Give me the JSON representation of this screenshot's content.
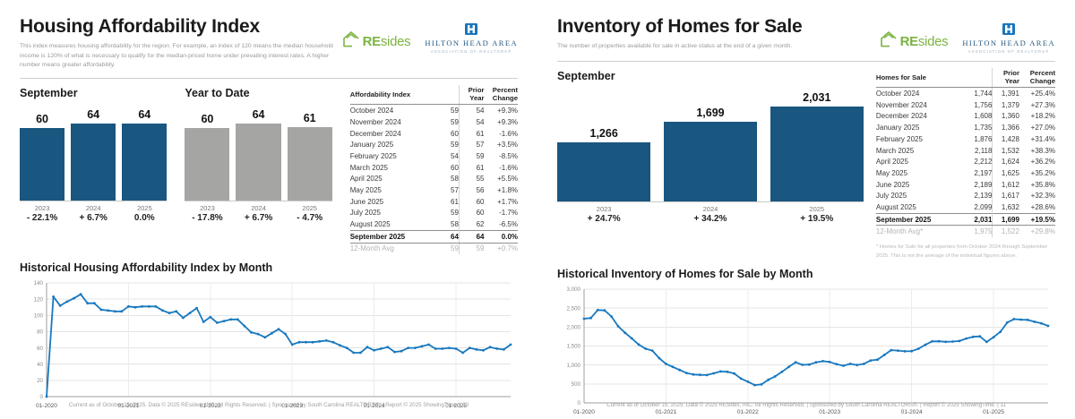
{
  "logos": {
    "resides_re": "RE",
    "resides_sides": "sides",
    "hha_name": "HILTON HEAD AREA",
    "hha_sub": "ASSOCIATION OF REALTORS®"
  },
  "colors": {
    "bar_blue": "#195680",
    "bar_gray": "#a5a5a4",
    "line_blue": "#1878bf"
  },
  "panels": [
    {
      "title": "Housing Affordability Index",
      "description": "This index measures housing affordability for the region. For example, an index of 120 means the median household income is 120% of what is necessary to qualify for the median-priced home under prevailing interest rates. A higher number means greater affordability.",
      "table": {
        "title": "Affordability Index",
        "col_headers": [
          "Prior Year",
          "Percent Change"
        ],
        "rows": [
          [
            "October 2024",
            "59",
            "54",
            "+9.3%"
          ],
          [
            "November 2024",
            "59",
            "54",
            "+9.3%"
          ],
          [
            "December 2024",
            "60",
            "61",
            "-1.6%"
          ],
          [
            "January 2025",
            "59",
            "57",
            "+3.5%"
          ],
          [
            "February 2025",
            "54",
            "59",
            "-8.5%"
          ],
          [
            "March 2025",
            "60",
            "61",
            "-1.6%"
          ],
          [
            "April 2025",
            "58",
            "55",
            "+5.5%"
          ],
          [
            "May 2025",
            "57",
            "56",
            "+1.8%"
          ],
          [
            "June 2025",
            "61",
            "60",
            "+1.7%"
          ],
          [
            "July 2025",
            "59",
            "60",
            "-1.7%"
          ],
          [
            "August 2025",
            "58",
            "62",
            "-6.5%"
          ],
          [
            "September 2025",
            "64",
            "64",
            "0.0%"
          ]
        ],
        "avg_row": [
          "12-Month Avg",
          "59",
          "59",
          "+0.7%"
        ],
        "footnote": ""
      },
      "footer": "Current as of October 15, 2025. Data © 2025 REsides, INC. All Rights Reserved.  |  Sponsored by South Carolina REALTORS®.  |  Report © 2025 ShowingTime.  |  10"
    },
    {
      "title": "Inventory of Homes for Sale",
      "description": "The number of properties available for sale in active status at the end of a given month.",
      "table": {
        "title": "Homes for Sale",
        "col_headers": [
          "Prior Year",
          "Percent Change"
        ],
        "rows": [
          [
            "October 2024",
            "1,744",
            "1,391",
            "+25.4%"
          ],
          [
            "November 2024",
            "1,756",
            "1,379",
            "+27.3%"
          ],
          [
            "December 2024",
            "1,608",
            "1,360",
            "+18.2%"
          ],
          [
            "January 2025",
            "1,735",
            "1,366",
            "+27.0%"
          ],
          [
            "February 2025",
            "1,876",
            "1,428",
            "+31.4%"
          ],
          [
            "March 2025",
            "2,118",
            "1,532",
            "+38.3%"
          ],
          [
            "April 2025",
            "2,212",
            "1,624",
            "+36.2%"
          ],
          [
            "May 2025",
            "2,197",
            "1,625",
            "+35.2%"
          ],
          [
            "June 2025",
            "2,189",
            "1,612",
            "+35.8%"
          ],
          [
            "July 2025",
            "2,139",
            "1,617",
            "+32.3%"
          ],
          [
            "August 2025",
            "2,099",
            "1,632",
            "+28.6%"
          ],
          [
            "September 2025",
            "2,031",
            "1,699",
            "+19.5%"
          ]
        ],
        "avg_row": [
          "12-Month Avg*",
          "1,975",
          "1,522",
          "+29.8%"
        ],
        "footnote": "* Homes for Sale for all properties from October 2024 through September 2025. This is not the average of the individual figures above."
      },
      "footer": "Current as of October 15, 2025. Data © 2025 REsides, INC. All Rights Reserved.  |  Sponsored by South Carolina REALTORS®.  |  Report © 2025 ShowingTime.  |  11"
    }
  ],
  "chart_data": [
    {
      "id": "affordability-september",
      "type": "bar",
      "title": "September",
      "categories": [
        "2023",
        "2024",
        "2025"
      ],
      "values": [
        60,
        64,
        64
      ],
      "value_labels": [
        "60",
        "64",
        "64"
      ],
      "pct_change": [
        "- 22.1%",
        "+ 6.7%",
        "0.0%"
      ],
      "bar_color": "#195680",
      "ylim": [
        0,
        64
      ]
    },
    {
      "id": "affordability-ytd",
      "type": "bar",
      "title": "Year to Date",
      "categories": [
        "2023",
        "2024",
        "2025"
      ],
      "values": [
        60,
        64,
        61
      ],
      "value_labels": [
        "60",
        "64",
        "61"
      ],
      "pct_change": [
        "- 17.8%",
        "+ 6.7%",
        "- 4.7%"
      ],
      "bar_color": "#a5a5a4",
      "ylim": [
        0,
        64
      ]
    },
    {
      "id": "inventory-september",
      "type": "bar",
      "title": "September",
      "categories": [
        "2023",
        "2024",
        "2025"
      ],
      "values": [
        1266,
        1699,
        2031
      ],
      "value_labels": [
        "1,266",
        "1,699",
        "2,031"
      ],
      "pct_change": [
        "+ 24.7%",
        "+ 34.2%",
        "+ 19.5%"
      ],
      "bar_color": "#195680",
      "ylim": [
        0,
        2031
      ]
    },
    {
      "id": "affordability-history",
      "type": "line",
      "title": "Historical Housing Affordability Index by Month",
      "x_tick_labels": [
        "01-2020",
        "01-2021",
        "01-2022",
        "01-2023",
        "01-2024",
        "01-2025"
      ],
      "x_tick_every": 12,
      "ylim": [
        0,
        140
      ],
      "y_step": 20,
      "y_format": "plain",
      "grid": true,
      "line_color": "#1878bf",
      "values": [
        0,
        123,
        112,
        117,
        121,
        126,
        115,
        115,
        107,
        106,
        105,
        105,
        111,
        110,
        111,
        111,
        111,
        106,
        103,
        105,
        97,
        103,
        109,
        92,
        98,
        91,
        93,
        95,
        95,
        87,
        79,
        77,
        73,
        78,
        83,
        77,
        64,
        67,
        67,
        67,
        68,
        69,
        67,
        63,
        60,
        54,
        54,
        61,
        57,
        59,
        61,
        55,
        56,
        60,
        60,
        62,
        64,
        59,
        59,
        60,
        59,
        54,
        60,
        58,
        57,
        61,
        59,
        58,
        64
      ]
    },
    {
      "id": "inventory-history",
      "type": "line",
      "title": "Historical Inventory of Homes for Sale by Month",
      "x_tick_labels": [
        "01-2020",
        "01-2021",
        "01-2022",
        "01-2023",
        "01-2024",
        "01-2025"
      ],
      "x_tick_every": 12,
      "ylim": [
        0,
        3000
      ],
      "y_step": 500,
      "y_format": "comma",
      "grid": true,
      "line_color": "#1878bf",
      "values": [
        2220,
        2240,
        2450,
        2440,
        2280,
        2020,
        1850,
        1700,
        1540,
        1430,
        1380,
        1180,
        1030,
        950,
        870,
        790,
        750,
        740,
        735,
        780,
        830,
        820,
        775,
        640,
        560,
        470,
        490,
        610,
        700,
        820,
        950,
        1070,
        1005,
        1010,
        1070,
        1100,
        1080,
        1020,
        980,
        1030,
        1000,
        1030,
        1120,
        1140,
        1266,
        1391,
        1379,
        1360,
        1366,
        1428,
        1532,
        1624,
        1625,
        1612,
        1617,
        1632,
        1699,
        1744,
        1756,
        1608,
        1735,
        1876,
        2118,
        2212,
        2197,
        2189,
        2139,
        2099,
        2031
      ]
    }
  ]
}
